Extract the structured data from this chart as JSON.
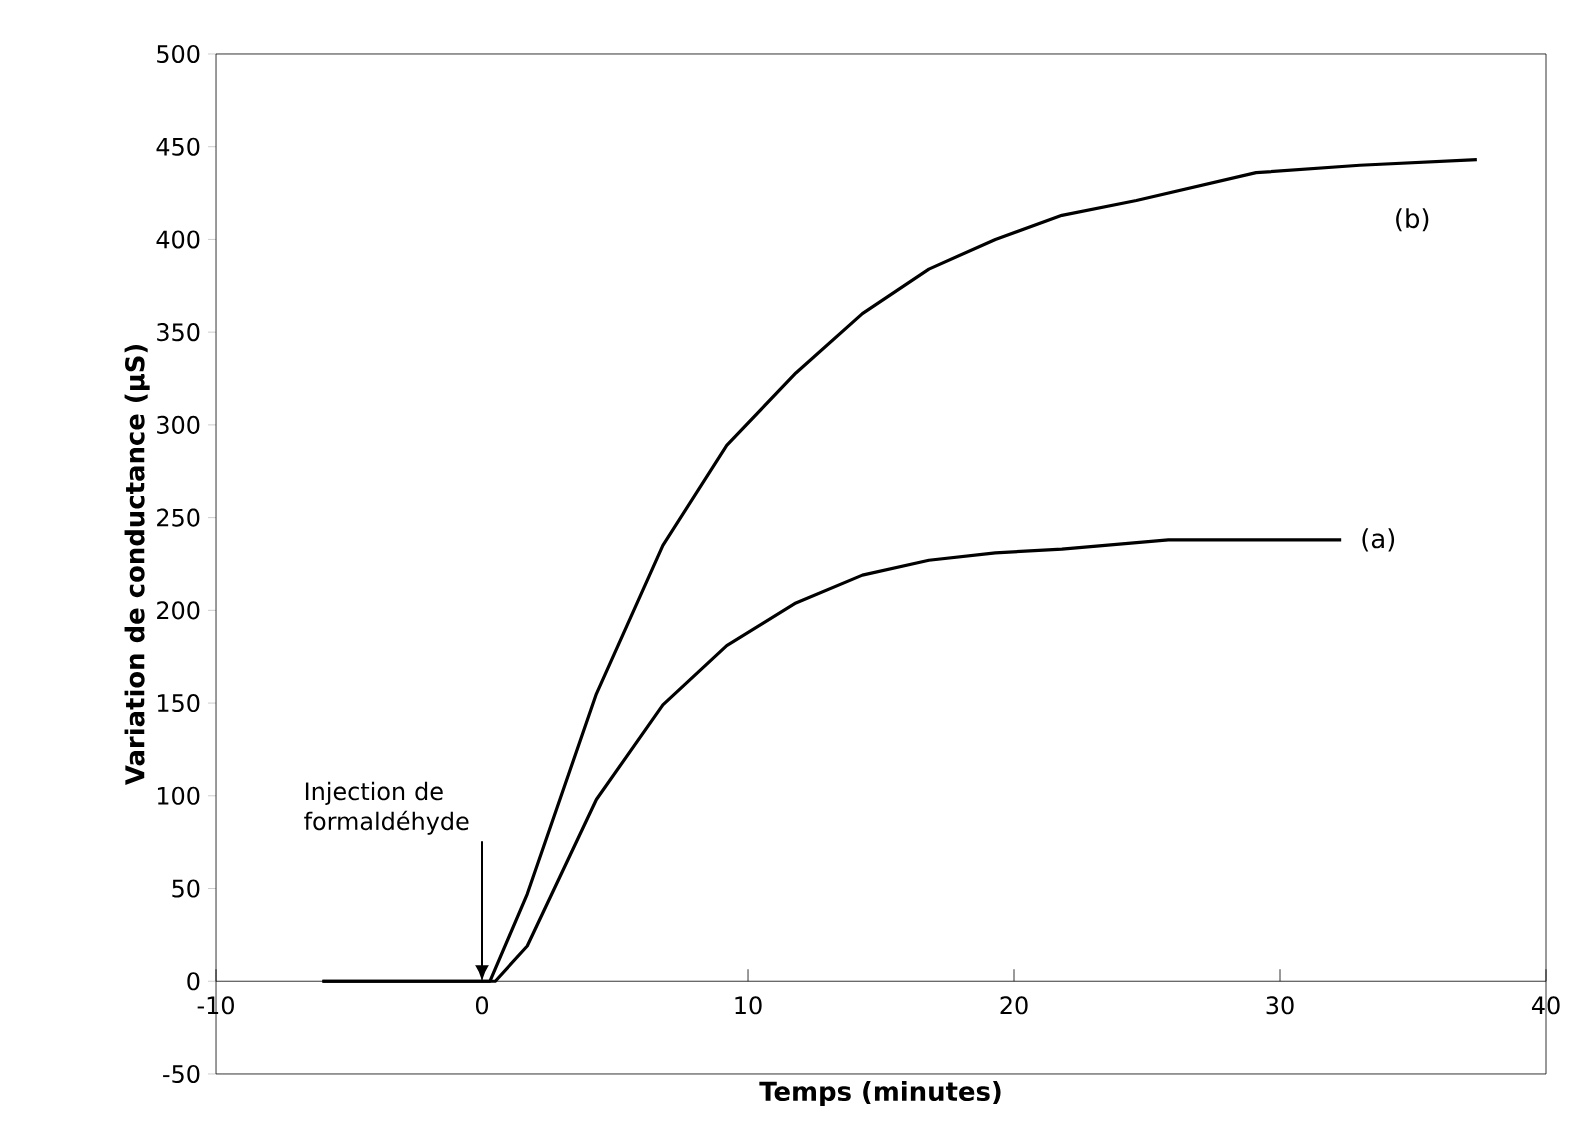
{
  "chart_data": {
    "type": "line",
    "xlabel": "Temps (minutes)",
    "ylabel": "Variation de conductance (µS)",
    "xlim": [
      -10,
      40
    ],
    "ylim": [
      -50,
      500
    ],
    "xticks": [
      -10,
      0,
      10,
      20,
      30,
      40
    ],
    "yticks": [
      -50,
      0,
      50,
      100,
      150,
      200,
      250,
      300,
      350,
      400,
      450,
      500
    ],
    "series": [
      {
        "color": "#000000",
        "x": [
          -6,
          -3,
          0,
          0.5,
          1.7,
          4.3,
          6.8,
          9.2,
          11.8,
          14.3,
          16.8,
          19.3,
          21.8,
          25.8,
          29,
          32.3
        ],
        "values": [
          0,
          0,
          0,
          0,
          19,
          98,
          149,
          181,
          204,
          219,
          227,
          231,
          233,
          238,
          238,
          238
        ]
      },
      {
        "color": "#000000",
        "x": [
          -6,
          -3,
          0,
          0.3,
          1.7,
          4.3,
          6.8,
          9.2,
          11.8,
          14.3,
          16.8,
          19.3,
          21.8,
          24.6,
          29.1,
          33,
          37.4
        ],
        "values": [
          0,
          0,
          0,
          0,
          47,
          155,
          235,
          289,
          328,
          360,
          384,
          400,
          413,
          421,
          436,
          440,
          443
        ]
      }
    ],
    "annotations": [
      "(a)",
      "(b)",
      {
        "text": "Injection de formaldéhyde",
        "x": 0,
        "y": 0
      }
    ],
    "marker": "none",
    "line_style": "solid",
    "grid": false
  }
}
